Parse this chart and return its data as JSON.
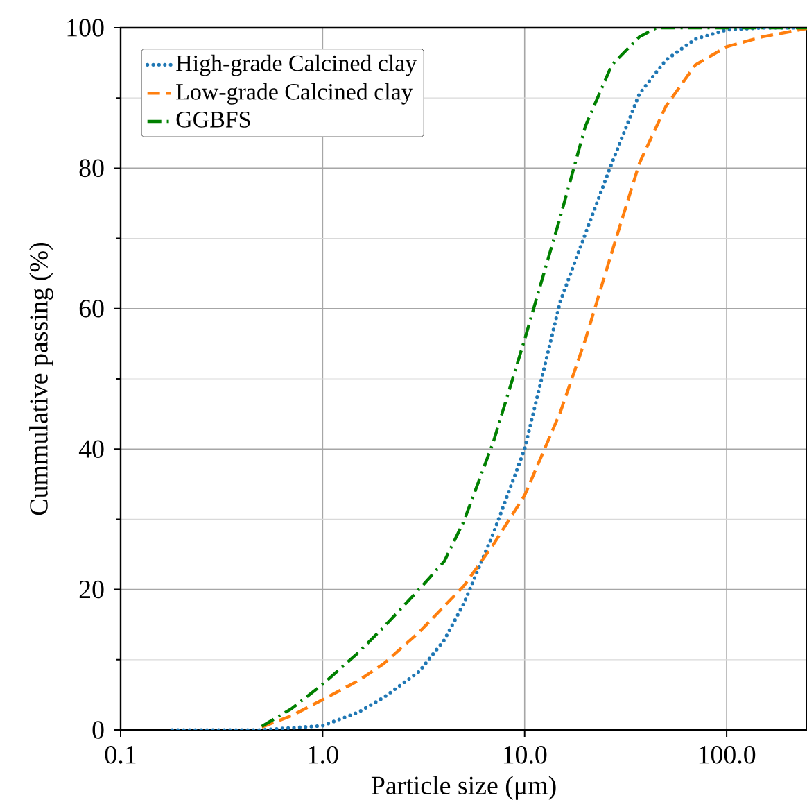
{
  "chart_data": {
    "type": "line",
    "xlabel": "Particle size (μm)",
    "ylabel": "Cummulative passing (%)",
    "log": "x",
    "grid": true,
    "legend": "top left",
    "xlim": [
      0.1,
      250
    ],
    "ylim": [
      0,
      100
    ],
    "xticks": [
      0.1,
      {
        "value": 1,
        "label": "1.0"
      },
      {
        "value": 10,
        "label": "10.0"
      },
      {
        "value": 100,
        "label": "100.0"
      }
    ],
    "yticks": [
      0,
      20,
      40,
      60,
      80,
      100
    ],
    "series": [
      {
        "name": "High-grade Calcined clay",
        "color": "#1f77b4",
        "line_style": "dotted",
        "x": [
          0.18,
          0.5,
          1.0,
          1.5,
          2,
          3,
          4,
          5,
          7,
          10,
          15,
          20,
          27,
          37,
          50,
          70,
          100,
          150,
          250
        ],
        "values": [
          0,
          0,
          0.6,
          2.5,
          4.6,
          8.3,
          12.8,
          18,
          28,
          40,
          61,
          70.7,
          80.7,
          90.6,
          95.4,
          98.4,
          99.7,
          100,
          100
        ]
      },
      {
        "name": "Low-grade Calcined clay",
        "color": "#ff7f0e",
        "line_style": "dashed",
        "x": [
          0.5,
          0.7,
          1.0,
          1.5,
          2,
          3,
          5,
          7,
          10,
          15,
          20,
          27,
          37,
          50,
          70,
          100,
          150,
          250
        ],
        "values": [
          0.4,
          2.0,
          4.3,
          7.0,
          9.4,
          13.9,
          20.5,
          26.4,
          33.4,
          45.2,
          55.6,
          68,
          80.7,
          88.8,
          94.7,
          97.3,
          98.7,
          99.9
        ]
      },
      {
        "name": "GGBFS",
        "color": "#008000",
        "line_style": "dashdot",
        "x": [
          0.5,
          0.7,
          1.0,
          1.5,
          2,
          3,
          4,
          5,
          7,
          10,
          15,
          20,
          27,
          37,
          45,
          60,
          250
        ],
        "values": [
          0.5,
          3.0,
          6.5,
          11,
          14.6,
          20,
          24,
          29.7,
          41,
          55.6,
          73,
          86,
          94.7,
          98.7,
          100,
          100,
          100
        ]
      }
    ]
  }
}
